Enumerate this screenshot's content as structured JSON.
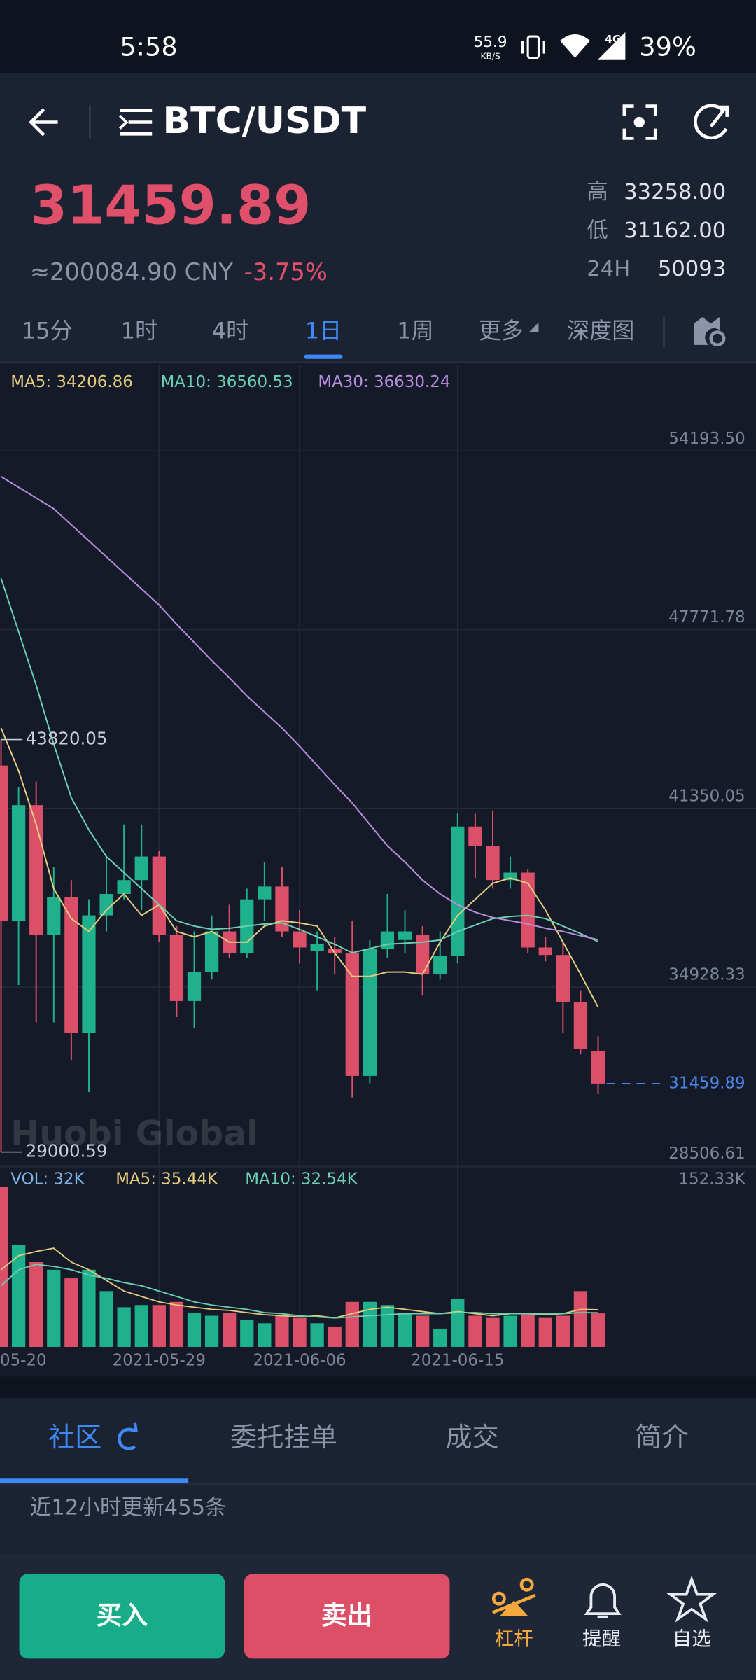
{
  "status_bar": {
    "time": "5:58",
    "speed": "55.9",
    "speed_unit": "KB/S",
    "network": "4G",
    "battery": "39%"
  },
  "header": {
    "pair": "BTC/USDT",
    "price": "31459.89",
    "cny": "≈200084.90 CNY",
    "change": "-3.75%",
    "stats": [
      {
        "label": "高",
        "value": "33258.00"
      },
      {
        "label": "低",
        "value": "31162.00"
      },
      {
        "label": "24H",
        "value": "50093"
      }
    ]
  },
  "timeframes": {
    "items": [
      "15分",
      "1时",
      "4时",
      "1日",
      "1周",
      "更多",
      "深度图"
    ],
    "active": 3
  },
  "chart_data": {
    "type": "candlestick",
    "categories": [
      "05-20",
      null,
      null,
      null,
      null,
      null,
      null,
      null,
      null,
      "2021-05-29",
      null,
      null,
      null,
      null,
      null,
      null,
      null,
      "2021-06-06",
      null,
      null,
      null,
      null,
      null,
      null,
      null,
      null,
      "2021-06-15",
      null,
      null,
      null,
      null,
      null,
      null,
      null,
      null
    ],
    "open": [
      42888,
      37312,
      41465,
      36812,
      38158,
      33275,
      37505,
      38274,
      38773,
      39619,
      36812,
      34428,
      35467,
      36928,
      36159,
      38082,
      38543,
      36928,
      36235,
      36312,
      36159,
      31736,
      36312,
      36620,
      36812,
      35390,
      36043,
      40696,
      40004,
      38773,
      39042,
      36351,
      36082,
      34390,
      32621
    ],
    "high": [
      43820.05,
      42119,
      42311,
      39235,
      38773,
      38082,
      39619,
      40773,
      40773,
      39812,
      37120,
      36928,
      37505,
      37889,
      38466,
      39427,
      39235,
      37697,
      36928,
      36736,
      37312,
      36620,
      38274,
      37697,
      37120,
      36928,
      41157,
      41157,
      41273,
      39619,
      39158,
      36736,
      36543,
      34813,
      33159
    ],
    "low": [
      29000.59,
      35005,
      33659,
      33659,
      32313,
      31160,
      36928,
      38082,
      37697,
      36543,
      33851,
      33467,
      35197,
      35966,
      35966,
      37312,
      36736,
      35774,
      34813,
      35390,
      30967,
      31467,
      35966,
      36159,
      34620,
      35197,
      35774,
      38850,
      38466,
      38466,
      36159,
      35851,
      33275,
      32506,
      31083
    ],
    "close": [
      37312,
      41465,
      36812,
      38158,
      33275,
      37505,
      38274,
      38773,
      39619,
      36812,
      34428,
      35467,
      36928,
      36159,
      38082,
      38543,
      36928,
      36351,
      36466,
      36159,
      31736,
      36312,
      36928,
      36928,
      35390,
      36043,
      40696,
      40004,
      38773,
      39042,
      36351,
      36082,
      34390,
      32698,
      31459.89
    ],
    "up_color": "#1fb08c",
    "down_color": "#dc4f69",
    "series": [
      {
        "name": "MA5: 34206.86",
        "color": "#e3cc80",
        "values": [
          44234,
          42696,
          40773,
          38466,
          37389,
          36928,
          37697,
          38274,
          37505,
          37889,
          36928,
          36736,
          36928,
          36543,
          36543,
          37120,
          37312,
          37235,
          37120,
          36159,
          35313,
          35313,
          35467,
          35467,
          35390,
          36543,
          37505,
          38082,
          38658,
          38850,
          38658,
          37697,
          36543,
          35390,
          34206.86
        ]
      },
      {
        "name": "MA10: 36560.53",
        "color": "#6ccfb1",
        "values": [
          49617,
          47695,
          45772,
          43657,
          41735,
          40580,
          39619,
          39042,
          38466,
          37889,
          37312,
          37120,
          37004,
          37043,
          37120,
          37197,
          37235,
          37004,
          36736,
          36466,
          36159,
          36312,
          36466,
          36505,
          36543,
          36620,
          36928,
          37158,
          37389,
          37466,
          37505,
          37389,
          37120,
          36851,
          36560.53
        ]
      },
      {
        "name": "MA30: 36630.24",
        "color": "#b98ee0",
        "values": [
          53271,
          52886,
          52502,
          52117,
          51540,
          50963,
          50387,
          49810,
          49233,
          48656,
          47964,
          47310,
          46656,
          46041,
          45388,
          44811,
          44234,
          43580,
          42888,
          42196,
          41542,
          40773,
          40004,
          39427,
          38773,
          38274,
          37889,
          37620,
          37428,
          37312,
          37197,
          37043,
          36928,
          36774,
          36630.24
        ]
      }
    ],
    "ylim": [
      28506.61,
      57308
    ],
    "yticks": [
      {
        "value": 54193.5,
        "label": "54193.50"
      },
      47771.78,
      41350.05,
      34928.33,
      28506.61
    ],
    "grid": true,
    "last_price": 31459.89,
    "last_price_color": "#4a85e6",
    "watermark": "Huobi Global",
    "volume": {
      "title": "VOL: 32K",
      "values": [
        152.33,
        97.1,
        80.8,
        73.6,
        65.4,
        73.6,
        53.2,
        37.8,
        39.9,
        39.9,
        42.9,
        32.7,
        29.7,
        32.7,
        25.6,
        22.5,
        29.7,
        27.6,
        22.5,
        19.4,
        42.9,
        42.9,
        39.9,
        32.7,
        29.7,
        17.4,
        46.0,
        29.7,
        27.6,
        29.7,
        32.7,
        27.6,
        29.7,
        53.2,
        32
      ],
      "ylim": [
        0,
        168.7
      ],
      "yticks": [
        {
          "value": 152.33,
          "label": "152.33K"
        }
      ],
      "series": [
        {
          "name": "MA5: 35.44K",
          "color": "#e3cc80",
          "values": [
            73.6,
            86.9,
            91.0,
            94.1,
            80.8,
            73.6,
            63.4,
            53.2,
            48.1,
            42.9,
            39.9,
            37.8,
            35.8,
            34.8,
            32.7,
            30.7,
            29.7,
            28.6,
            29.7,
            27.6,
            31.7,
            35.8,
            37.8,
            35.8,
            33.7,
            31.7,
            33.7,
            31.7,
            29.7,
            31.7,
            31.7,
            30.7,
            31.7,
            35.8,
            35.44
          ]
        },
        {
          "name": "MA10: 32.54K",
          "color": "#6ccfb1",
          "values": [
            58.3,
            73.6,
            78.7,
            76.7,
            73.6,
            68.5,
            65.4,
            61.3,
            58.3,
            53.2,
            48.1,
            42.9,
            39.9,
            37.8,
            35.8,
            32.7,
            31.7,
            29.7,
            28.6,
            27.6,
            28.6,
            29.7,
            30.7,
            31.7,
            31.7,
            31.7,
            32.7,
            32.7,
            31.7,
            31.7,
            31.7,
            31.7,
            31.7,
            32.7,
            32.54
          ]
        }
      ]
    }
  },
  "tabs": {
    "items": [
      "社区",
      "委托挂单",
      "成交",
      "简介"
    ],
    "active": 0,
    "notice": "近12小时更新455条"
  },
  "actions": {
    "buy": "买入",
    "sell": "卖出",
    "tools": [
      "杠杆",
      "提醒",
      "自选"
    ]
  }
}
